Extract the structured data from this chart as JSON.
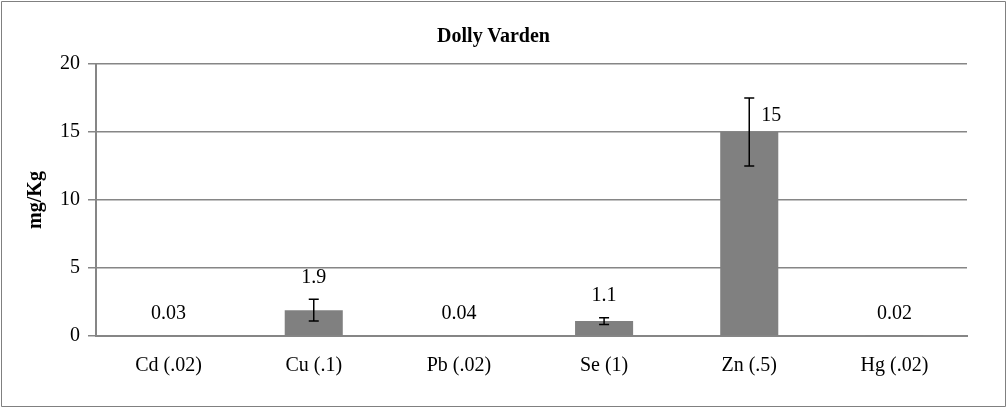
{
  "chart_data": {
    "type": "bar",
    "title": "Dolly Varden",
    "ylabel": "mg/Kg",
    "categories": [
      "Cd (.02)",
      "Cu (.1)",
      "Pb (.02)",
      "Se (1)",
      "Zn (.5)",
      "Hg (.02)"
    ],
    "values": [
      0.03,
      1.9,
      0.04,
      1.1,
      15,
      0.02
    ],
    "errors": [
      null,
      0.8,
      null,
      0.25,
      2.5,
      null
    ],
    "color": "#808080",
    "ylim": [
      0,
      20
    ],
    "yticks": [
      0,
      5,
      10,
      15,
      20
    ],
    "grid": "y",
    "legend": false,
    "data_labels": true
  }
}
